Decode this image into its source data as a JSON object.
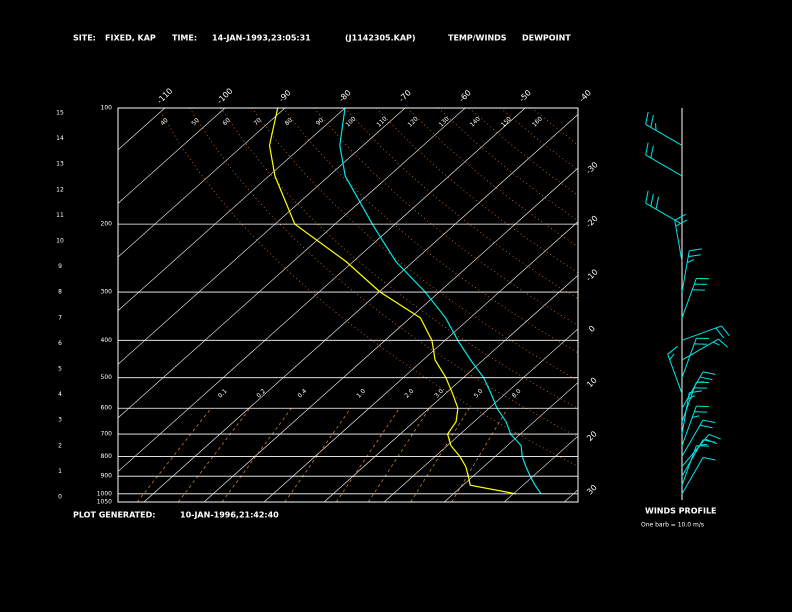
{
  "chart_data": {
    "type": "skew-t",
    "site_label": "SITE:",
    "site": "FIXED, KAP",
    "time_label": "TIME:",
    "time": "14-JAN-1993,23:05:31",
    "file": "(J1142305.KAP)",
    "footer_label": "PLOT GENERATED:",
    "generated": "10-JAN-1996,21:42:40",
    "winds_title": "WINDS PROFILE",
    "winds_note": "One barb = 10.0 m/s",
    "log_scale": true,
    "ylim": [
      1050,
      100
    ],
    "yticks": [
      100,
      200,
      300,
      400,
      500,
      600,
      700,
      800,
      900,
      1000,
      1050
    ],
    "xlim": [
      -117.8,
      -41.2
    ],
    "xticks": [
      -110,
      -100,
      -90,
      -80,
      -70,
      -60,
      -50,
      -40,
      -30,
      -20,
      -10,
      0,
      10,
      20,
      30
    ],
    "height_lim": [
      0,
      15
    ],
    "height_ticks": [
      0,
      1,
      2,
      3,
      4,
      5,
      6,
      7,
      8,
      9,
      10,
      11,
      12,
      13,
      14,
      15
    ],
    "pressure": [
      1000,
      950,
      900,
      850,
      800,
      750,
      700,
      650,
      600,
      550,
      500,
      450,
      400,
      350,
      300,
      250,
      200,
      150,
      125,
      100
    ],
    "series": [
      {
        "name": "TEMP/WINDS",
        "color": "#00e5e5",
        "values": [
          24.6,
          22.0,
          19.5,
          17.0,
          14.5,
          12.3,
          8.4,
          5.3,
          1.3,
          -2.4,
          -6.6,
          -12.1,
          -17.9,
          -24.1,
          -32.3,
          -42.9,
          -53.8,
          -67.3,
          -73.9,
          -80.0
        ]
      },
      {
        "name": "DEWPOINT",
        "color": "#ffff00",
        "values": [
          20.4,
          11.2,
          9.2,
          7.0,
          4.1,
          0.6,
          -2.1,
          -3.0,
          -5.2,
          -8.8,
          -12.9,
          -18.0,
          -22.2,
          -28.3,
          -39.8,
          -51.2,
          -66.7,
          -79.0,
          -85.6,
          -91.2
        ]
      }
    ],
    "mixing_ratios": [
      0.1,
      0.2,
      0.4,
      {
        "value": 1,
        "label": "1.0"
      },
      {
        "value": 2,
        "label": "2.0"
      },
      {
        "value": 3,
        "label": "3.0"
      },
      {
        "value": 5,
        "label": "5.0"
      },
      {
        "value": 8,
        "label": "8.0"
      }
    ],
    "dry_adiabats": [
      40,
      50,
      60,
      70,
      80,
      90,
      100,
      110,
      120,
      130,
      140,
      150,
      160
    ],
    "winds": [
      {
        "pressure": 1000,
        "direction": 30,
        "speed": 10
      },
      {
        "pressure": 950,
        "direction": 20,
        "speed": 10
      },
      {
        "pressure": 900,
        "direction": 30,
        "speed": 15
      },
      {
        "pressure": 850,
        "direction": 40,
        "speed": 20
      },
      {
        "pressure": 800,
        "direction": 30,
        "speed": 20
      },
      {
        "pressure": 750,
        "direction": 20,
        "speed": 25
      },
      {
        "pressure": 700,
        "direction": 10,
        "speed": 15
      },
      {
        "pressure": 650,
        "direction": 20,
        "speed": 20
      },
      {
        "pressure": 600,
        "direction": 30,
        "speed": 25
      },
      {
        "pressure": 550,
        "direction": 340,
        "speed": 15
      },
      {
        "pressure": 500,
        "direction": 20,
        "speed": 20
      },
      {
        "pressure": 450,
        "direction": 60,
        "speed": 15
      },
      {
        "pressure": 400,
        "direction": 70,
        "speed": 20
      },
      {
        "pressure": 350,
        "direction": 20,
        "speed": 30
      },
      {
        "pressure": 300,
        "direction": 10,
        "speed": 25
      },
      {
        "pressure": 250,
        "direction": 350,
        "speed": 20
      },
      {
        "pressure": 200,
        "direction": 300,
        "speed": 30
      },
      {
        "pressure": 150,
        "direction": 300,
        "speed": 20
      },
      {
        "pressure": 125,
        "direction": 300,
        "speed": 25
      }
    ]
  }
}
